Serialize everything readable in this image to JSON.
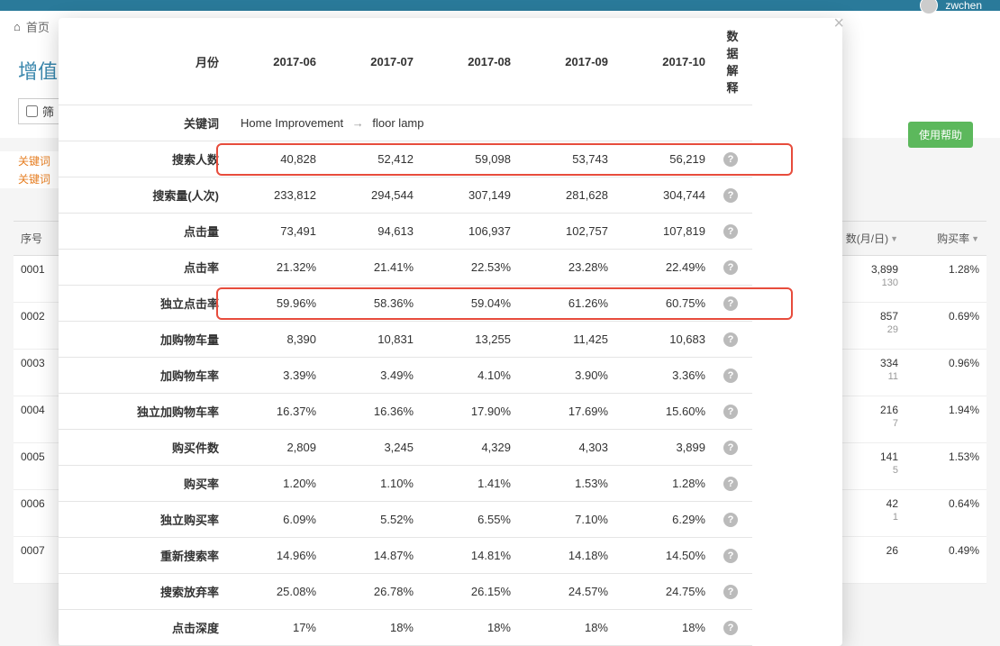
{
  "bg": {
    "username": "zwchen",
    "breadcrumb_home": "首页",
    "page_title_partial": "增值",
    "checkbox_label_partial": "筛",
    "orange_link_1": "关键词",
    "orange_link_2": "关键词",
    "help_btn": "使用帮助",
    "table": {
      "header_seq": "序号",
      "header_col1": "数(月/日)",
      "header_col2": "购买率",
      "rows": [
        {
          "seq": "0001",
          "v1": "3,899",
          "v1sub": "130",
          "v2": "1.28%"
        },
        {
          "seq": "0002",
          "v1": "857",
          "v1sub": "29",
          "v2": "0.69%"
        },
        {
          "seq": "0003",
          "v1": "334",
          "v1sub": "11",
          "v2": "0.96%"
        },
        {
          "seq": "0004",
          "v1": "216",
          "v1sub": "7",
          "v2": "1.94%"
        },
        {
          "seq": "0005",
          "v1": "141",
          "v1sub": "5",
          "v2": "1.53%"
        },
        {
          "seq": "0006",
          "v1": "42",
          "v1sub": "1",
          "v2": "0.64%"
        },
        {
          "seq": "0007",
          "v1": "26",
          "v1sub": "",
          "v2": "0.49%"
        }
      ]
    }
  },
  "modal": {
    "header": {
      "month": "月份",
      "cols": [
        "2017-06",
        "2017-07",
        "2017-08",
        "2017-09",
        "2017-10"
      ],
      "explain": "数据解释"
    },
    "keyword": {
      "label": "关键词",
      "cat": "Home Improvement",
      "term": "floor lamp"
    },
    "rows": [
      {
        "label": "搜索人数",
        "vals": [
          "40,828",
          "52,412",
          "59,098",
          "53,743",
          "56,219"
        ],
        "help": true,
        "highlight": true
      },
      {
        "label": "搜索量(人次)",
        "vals": [
          "233,812",
          "294,544",
          "307,149",
          "281,628",
          "304,744"
        ],
        "help": true
      },
      {
        "label": "点击量",
        "vals": [
          "73,491",
          "94,613",
          "106,937",
          "102,757",
          "107,819"
        ],
        "help": true
      },
      {
        "label": "点击率",
        "vals": [
          "21.32%",
          "21.41%",
          "22.53%",
          "23.28%",
          "22.49%"
        ],
        "help": true
      },
      {
        "label": "独立点击率",
        "vals": [
          "59.96%",
          "58.36%",
          "59.04%",
          "61.26%",
          "60.75%"
        ],
        "help": true,
        "highlight": true
      },
      {
        "label": "加购物车量",
        "vals": [
          "8,390",
          "10,831",
          "13,255",
          "11,425",
          "10,683"
        ],
        "help": true
      },
      {
        "label": "加购物车率",
        "vals": [
          "3.39%",
          "3.49%",
          "4.10%",
          "3.90%",
          "3.36%"
        ],
        "help": true
      },
      {
        "label": "独立加购物车率",
        "vals": [
          "16.37%",
          "16.36%",
          "17.90%",
          "17.69%",
          "15.60%"
        ],
        "help": true
      },
      {
        "label": "购买件数",
        "vals": [
          "2,809",
          "3,245",
          "4,329",
          "4,303",
          "3,899"
        ],
        "help": true
      },
      {
        "label": "购买率",
        "vals": [
          "1.20%",
          "1.10%",
          "1.41%",
          "1.53%",
          "1.28%"
        ],
        "help": true
      },
      {
        "label": "独立购买率",
        "vals": [
          "6.09%",
          "5.52%",
          "6.55%",
          "7.10%",
          "6.29%"
        ],
        "help": true
      },
      {
        "label": "重新搜索率",
        "vals": [
          "14.96%",
          "14.87%",
          "14.81%",
          "14.18%",
          "14.50%"
        ],
        "help": true
      },
      {
        "label": "搜索放弃率",
        "vals": [
          "25.08%",
          "26.78%",
          "26.15%",
          "24.57%",
          "24.75%"
        ],
        "help": true
      },
      {
        "label": "点击深度",
        "vals": [
          "17%",
          "18%",
          "18%",
          "18%",
          "18%"
        ],
        "help": true
      }
    ]
  }
}
